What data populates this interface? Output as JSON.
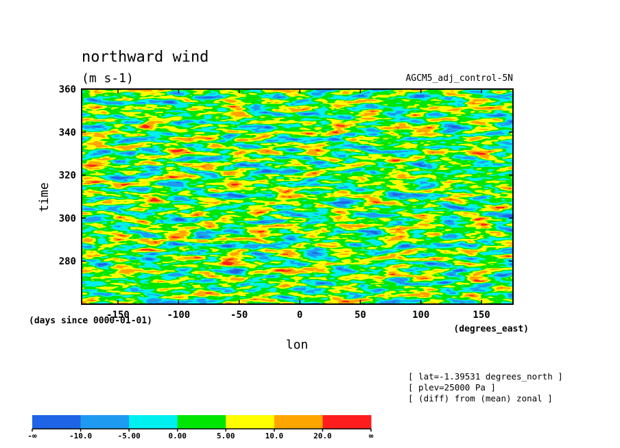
{
  "chart_data": {
    "type": "heatmap",
    "title": "northward wind",
    "units": "(m s-1)",
    "experiment": "AGCM5_adj_control-5N",
    "xlabel": "lon",
    "x_units": "(degrees_east)",
    "ylabel": "time",
    "y_units": "(days since 0000-01-01)",
    "xlim": [
      -180,
      176
    ],
    "ylim": [
      260,
      360
    ],
    "x_ticks": [
      -150,
      -100,
      -50,
      0,
      50,
      100,
      150
    ],
    "x_tick_labels": [
      "-150",
      "-100",
      "-50",
      "0",
      "50",
      "100",
      "150"
    ],
    "y_ticks": [
      280,
      300,
      320,
      340,
      360
    ],
    "y_tick_labels": [
      "280",
      "300",
      "320",
      "340",
      "360"
    ],
    "annotations": [
      "[ lat=-1.39531 degrees_north ]",
      "[ plev=25000 Pa ]",
      "[ (diff) from (mean) zonal ]"
    ],
    "colorbar": {
      "levels": [
        -10.0,
        -5.0,
        0.0,
        5.0,
        10.0,
        20.0
      ],
      "labels": [
        "-∞",
        "-10.0",
        "-5.00",
        "0.00",
        "5.00",
        "10.0",
        "20.0",
        "∞"
      ],
      "colors": [
        "#1e64e6",
        "#1e9bf0",
        "#00f0f0",
        "#00e600",
        "#ffff00",
        "#ffa500",
        "#ff1e1e"
      ]
    }
  }
}
